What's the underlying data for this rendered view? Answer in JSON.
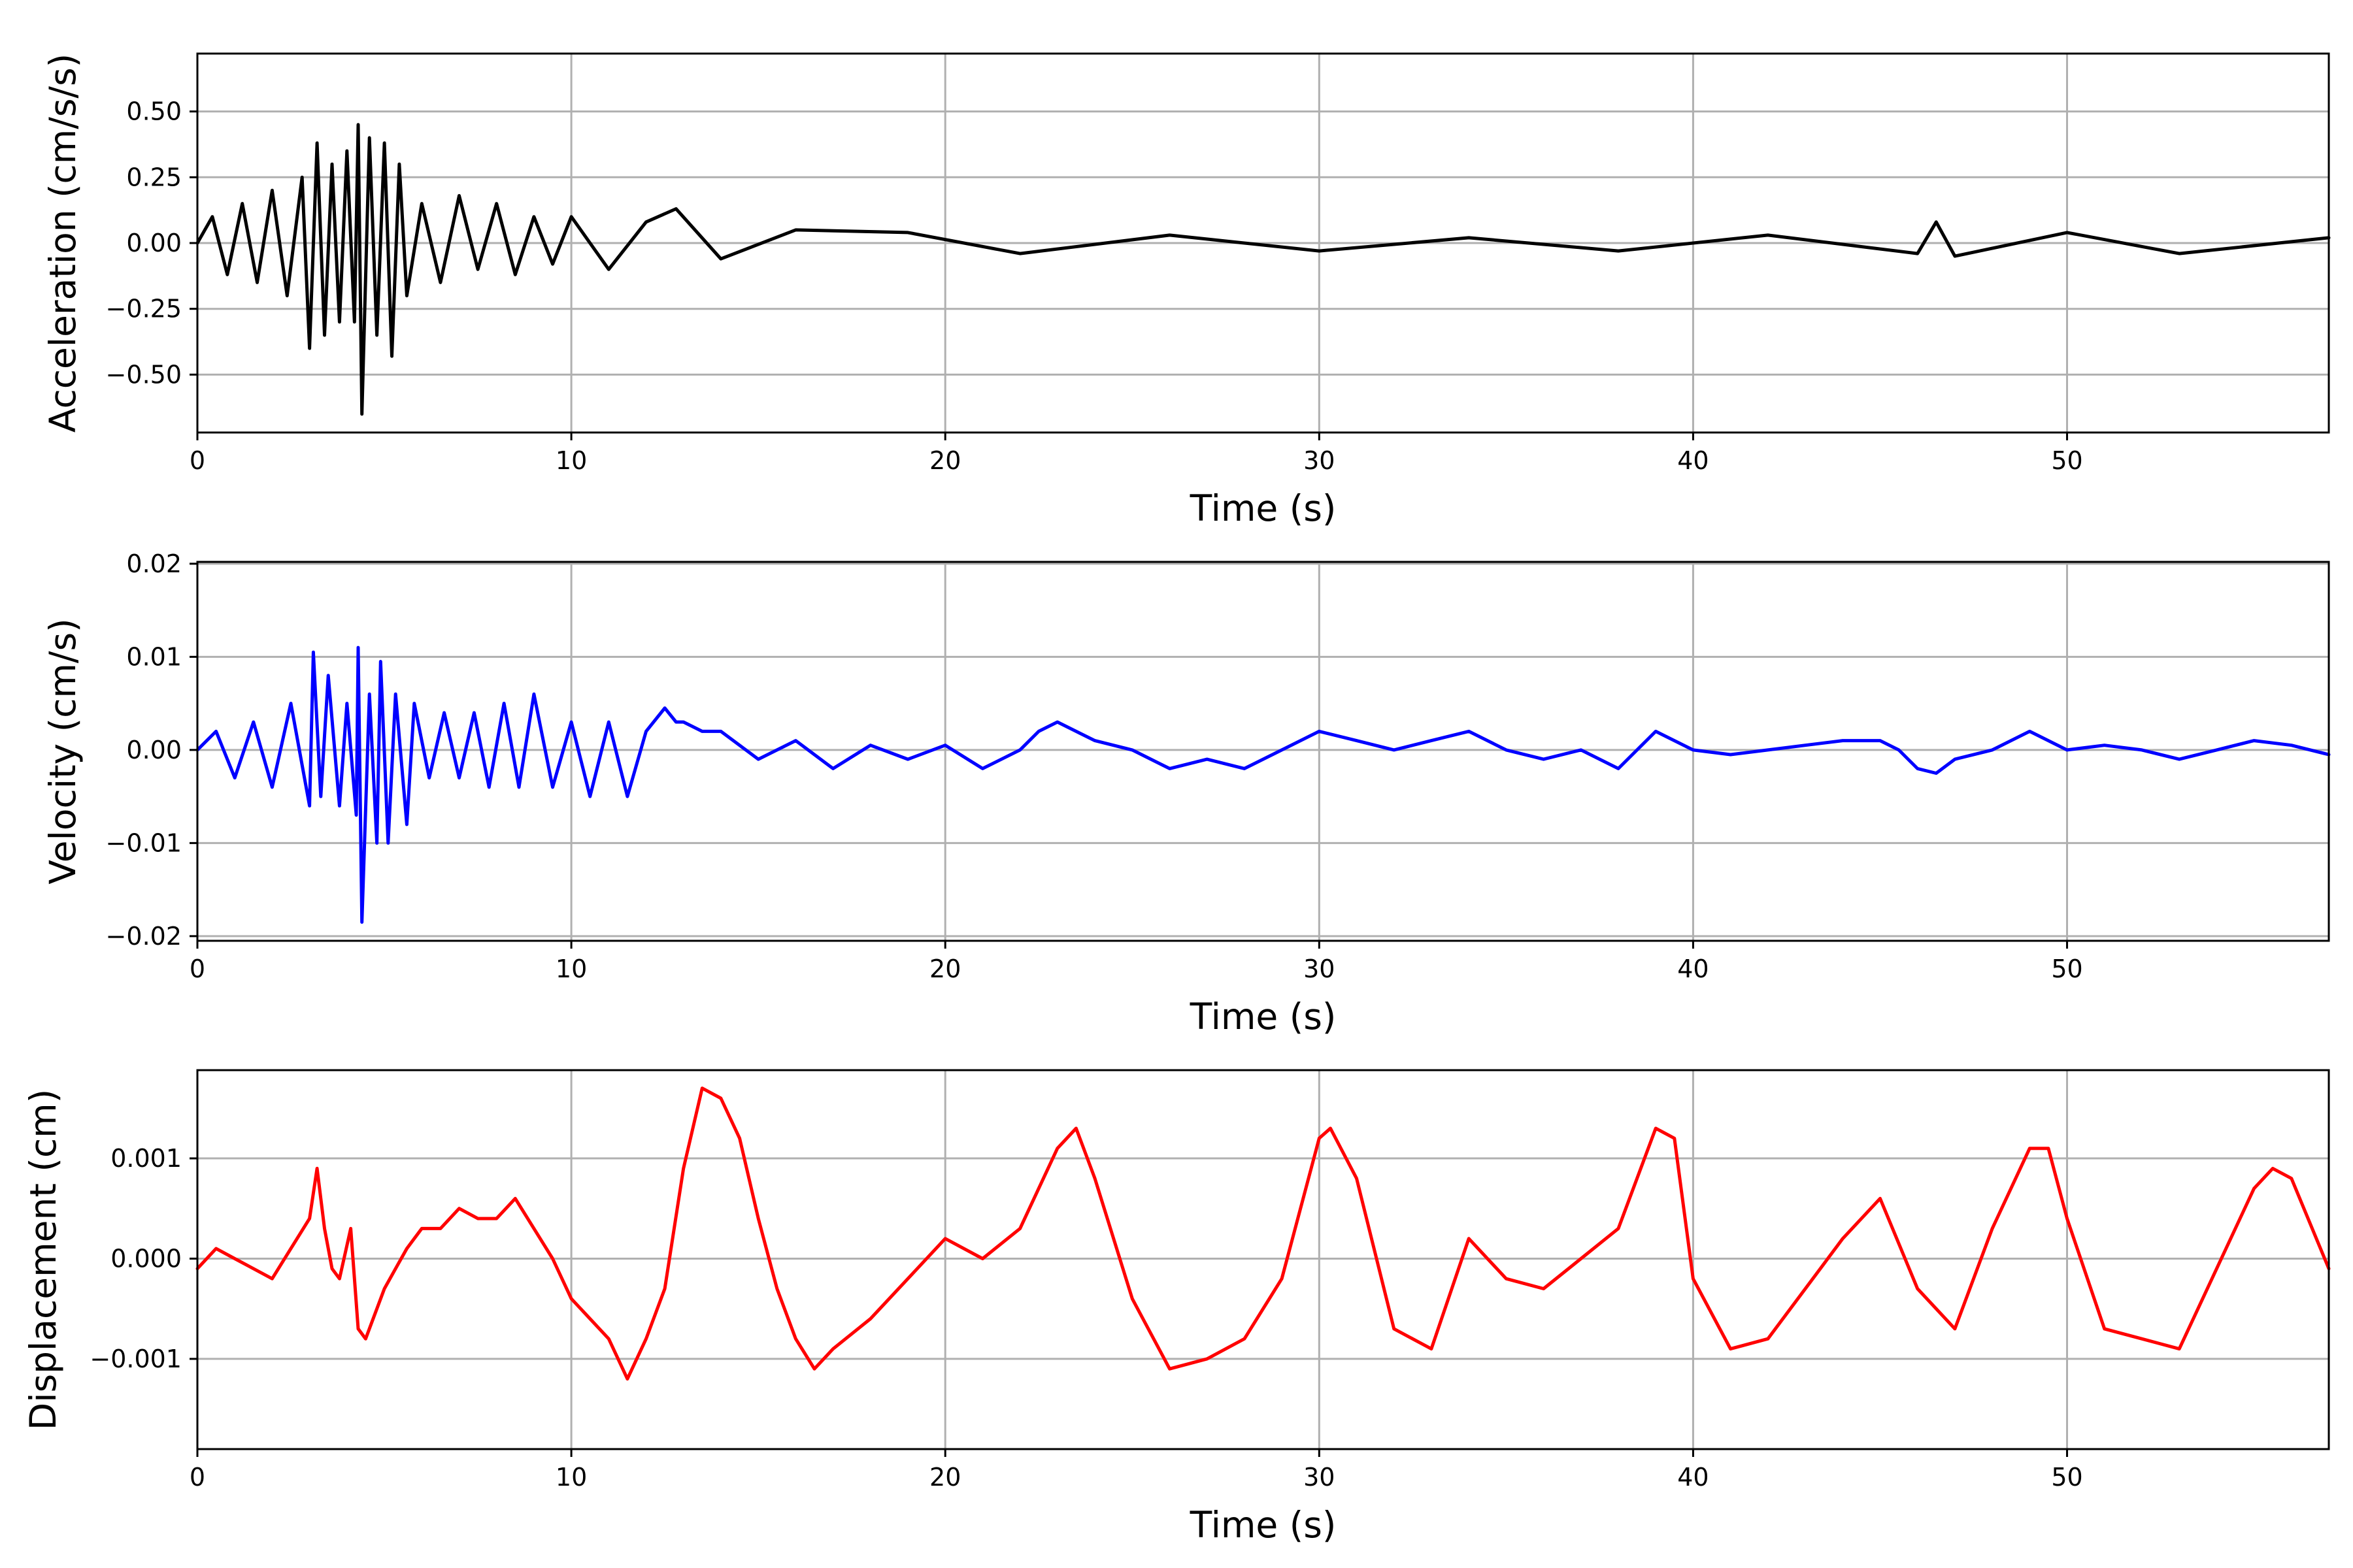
{
  "chart_data": [
    {
      "type": "line",
      "xlabel": "Time (s)",
      "ylabel": "Acceleration (cm/s/s)",
      "xlim": [
        0,
        57
      ],
      "ylim": [
        -0.72,
        0.72
      ],
      "xticks": [
        0,
        10,
        20,
        30,
        40,
        50
      ],
      "xtick_labels": [
        "0",
        "10",
        "20",
        "30",
        "40",
        "50"
      ],
      "yticks": [
        -0.5,
        -0.25,
        0,
        0.25,
        0.5
      ],
      "ytick_labels": [
        "−0.50",
        "−0.25",
        "0.00",
        "0.25",
        "0.50"
      ],
      "grid": true,
      "color": "#000000",
      "series": [
        {
          "x": [
            0,
            0.4,
            0.8,
            1.2,
            1.6,
            2.0,
            2.4,
            2.8,
            3.0,
            3.2,
            3.4,
            3.6,
            3.8,
            4.0,
            4.2,
            4.3,
            4.4,
            4.6,
            4.8,
            5.0,
            5.2,
            5.4,
            5.6,
            6.0,
            6.5,
            7.0,
            7.5,
            8.0,
            8.5,
            9.0,
            9.5,
            10,
            11,
            12,
            12.8,
            14,
            16,
            19,
            22,
            26,
            30,
            34,
            38,
            42,
            46,
            46.5,
            47,
            50,
            53,
            57
          ],
          "y": [
            0,
            0.1,
            -0.12,
            0.15,
            -0.15,
            0.2,
            -0.2,
            0.25,
            -0.4,
            0.38,
            -0.35,
            0.3,
            -0.3,
            0.35,
            -0.3,
            0.45,
            -0.65,
            0.4,
            -0.35,
            0.38,
            -0.43,
            0.3,
            -0.2,
            0.15,
            -0.15,
            0.18,
            -0.1,
            0.15,
            -0.12,
            0.1,
            -0.08,
            0.1,
            -0.1,
            0.08,
            0.13,
            -0.06,
            0.05,
            0.04,
            -0.04,
            0.03,
            -0.03,
            0.02,
            -0.03,
            0.03,
            -0.04,
            0.08,
            -0.05,
            0.04,
            -0.04,
            0.02
          ]
        }
      ]
    },
    {
      "type": "line",
      "xlabel": "Time (s)",
      "ylabel": "Velocity (cm/s)",
      "xlim": [
        0,
        57
      ],
      "ylim": [
        -0.0205,
        0.0202
      ],
      "xticks": [
        0,
        10,
        20,
        30,
        40,
        50
      ],
      "xtick_labels": [
        "0",
        "10",
        "20",
        "30",
        "40",
        "50"
      ],
      "yticks": [
        -0.02,
        -0.01,
        0,
        0.01,
        0.02
      ],
      "ytick_labels": [
        "−0.02",
        "−0.01",
        "0.00",
        "0.01",
        "0.02"
      ],
      "grid": true,
      "color": "#0000ff",
      "series": [
        {
          "x": [
            0,
            0.5,
            1.0,
            1.5,
            2.0,
            2.5,
            3.0,
            3.1,
            3.3,
            3.5,
            3.8,
            4.0,
            4.25,
            4.3,
            4.4,
            4.6,
            4.8,
            4.9,
            5.1,
            5.3,
            5.6,
            5.8,
            6.2,
            6.6,
            7.0,
            7.4,
            7.8,
            8.2,
            8.6,
            9.0,
            9.5,
            10,
            10.5,
            11,
            11.5,
            12,
            12.5,
            12.8,
            13,
            13.5,
            14,
            15,
            16,
            17,
            18,
            19,
            20,
            21,
            22,
            22.5,
            23,
            23.5,
            24,
            25,
            26,
            27,
            28,
            29,
            30,
            31,
            32,
            33,
            34,
            35,
            36,
            37,
            38,
            38.5,
            39,
            40,
            41,
            42,
            43,
            44,
            45,
            45.5,
            46,
            46.5,
            47,
            48,
            49,
            50,
            51,
            52,
            53,
            54,
            55,
            56,
            57
          ],
          "y": [
            0,
            0.002,
            -0.003,
            0.003,
            -0.004,
            0.005,
            -0.006,
            0.0105,
            -0.005,
            0.008,
            -0.006,
            0.005,
            -0.007,
            0.011,
            -0.0185,
            0.006,
            -0.01,
            0.0095,
            -0.01,
            0.006,
            -0.008,
            0.005,
            -0.003,
            0.004,
            -0.003,
            0.004,
            -0.004,
            0.005,
            -0.004,
            0.006,
            -0.004,
            0.003,
            -0.005,
            0.003,
            -0.005,
            0.002,
            0.0045,
            0.003,
            0.003,
            0.002,
            0.002,
            -0.001,
            0.001,
            -0.002,
            0.0005,
            -0.001,
            0.0005,
            -0.002,
            0.0,
            0.002,
            0.003,
            0.002,
            0.001,
            0.0,
            -0.002,
            -0.001,
            -0.002,
            0.0,
            0.002,
            0.001,
            0.0,
            0.001,
            0.002,
            0.0,
            -0.001,
            0.0,
            -0.002,
            0.0,
            0.002,
            0.0,
            -0.0005,
            0.0,
            0.0005,
            0.001,
            0.001,
            0.0,
            -0.002,
            -0.0025,
            -0.001,
            0.0,
            0.002,
            0.0,
            0.0005,
            0.0,
            -0.001,
            0.0,
            0.001,
            0.0005,
            -0.0005
          ]
        }
      ]
    },
    {
      "type": "line",
      "xlabel": "Time (s)",
      "ylabel": "Displacement (cm)",
      "xlim": [
        0,
        57
      ],
      "ylim": [
        -0.0019,
        0.00188
      ],
      "xticks": [
        0,
        10,
        20,
        30,
        40,
        50
      ],
      "xtick_labels": [
        "0",
        "10",
        "20",
        "30",
        "40",
        "50"
      ],
      "yticks": [
        -0.001,
        0,
        0.001
      ],
      "ytick_labels": [
        "−0.001",
        "0.000",
        "0.001"
      ],
      "grid": true,
      "color": "#ff0000",
      "series": [
        {
          "x": [
            0,
            0.5,
            1.0,
            1.5,
            2.0,
            2.5,
            3.0,
            3.2,
            3.4,
            3.6,
            3.8,
            4.1,
            4.3,
            4.5,
            4.8,
            5.0,
            5.3,
            5.6,
            6.0,
            6.5,
            7.0,
            7.5,
            8.0,
            8.5,
            9.0,
            9.5,
            10,
            10.5,
            11,
            11.5,
            12,
            12.5,
            13,
            13.5,
            14,
            14.5,
            15,
            15.5,
            16,
            16.5,
            17,
            18,
            19,
            20,
            21,
            22,
            23,
            23.5,
            24,
            25,
            26,
            27,
            28,
            29,
            30,
            30.3,
            31,
            32,
            33,
            34,
            35,
            36,
            37,
            38,
            39,
            39.5,
            40,
            41,
            42,
            43,
            44,
            45,
            46,
            47,
            48,
            49,
            49.5,
            50,
            51,
            52,
            53,
            54,
            55,
            55.5,
            56,
            57
          ],
          "y": [
            -0.0001,
            0.0001,
            0.0,
            -0.0001,
            -0.0002,
            0.0001,
            0.0004,
            0.0009,
            0.0003,
            -0.0001,
            -0.0002,
            0.0003,
            -0.0007,
            -0.0008,
            -0.0005,
            -0.0003,
            -0.0001,
            0.0001,
            0.0003,
            0.0003,
            0.0005,
            0.0004,
            0.0004,
            0.0006,
            0.0003,
            0.0,
            -0.0004,
            -0.0006,
            -0.0008,
            -0.0012,
            -0.0008,
            -0.0003,
            0.0009,
            0.0017,
            0.0016,
            0.0012,
            0.0004,
            -0.0003,
            -0.0008,
            -0.0011,
            -0.0009,
            -0.0006,
            -0.0002,
            0.0002,
            0.0,
            0.0003,
            0.0011,
            0.0013,
            0.0008,
            -0.0004,
            -0.0011,
            -0.001,
            -0.0008,
            -0.0002,
            0.0012,
            0.0013,
            0.0008,
            -0.0007,
            -0.0009,
            0.0002,
            -0.0002,
            -0.0003,
            0.0,
            0.0003,
            0.0013,
            0.0012,
            -0.0002,
            -0.0009,
            -0.0008,
            -0.0003,
            0.0002,
            0.0006,
            -0.0003,
            -0.0007,
            0.0003,
            0.0011,
            0.0011,
            0.0004,
            -0.0007,
            -0.0008,
            -0.0009,
            -0.0001,
            0.0007,
            0.0009,
            0.0008,
            -0.0001
          ]
        }
      ]
    }
  ]
}
